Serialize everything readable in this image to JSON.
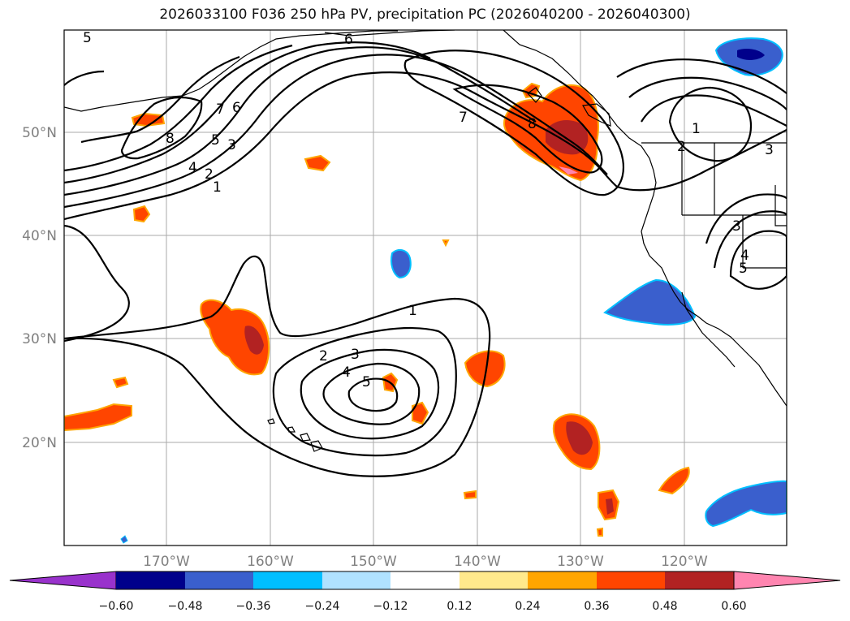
{
  "title": "2026033100 F036 250 hPa PV, precipitation PC (2026040200 - 2026040300)",
  "longitude_labels": [
    "170°W",
    "160°W",
    "150°W",
    "140°W",
    "130°W",
    "120°W"
  ],
  "latitude_labels": [
    "50°N",
    "40°N",
    "30°N",
    "20°N"
  ],
  "pv_contour_labels": [
    "5",
    "6",
    "8",
    "7",
    "6",
    "5",
    "3",
    "4",
    "2",
    "1",
    "7",
    "8",
    "1",
    "2",
    "3",
    "3",
    "4",
    "5",
    "1",
    "2",
    "3",
    "4",
    "5"
  ],
  "colorbar": {
    "tick_labels": [
      "−0.60",
      "−0.48",
      "−0.36",
      "−0.24",
      "−0.12",
      "0.12",
      "0.24",
      "0.36",
      "0.48",
      "0.60"
    ],
    "colors": [
      "#9932CC",
      "#00008B",
      "#3A5FCD",
      "#00BFFF",
      "#B0E2FF",
      "#FFFFFF",
      "#FFE98C",
      "#FFA500",
      "#FF4500",
      "#B22222",
      "#FF85B0"
    ]
  },
  "precip_colors": {
    "pos_light": "#FFE98C",
    "pos_orange": "#FFA500",
    "pos_red": "#FF4500",
    "pos_dark": "#B22222",
    "pos_pink": "#FF85B0",
    "neg_cyan": "#00BFFF",
    "neg_blue": "#3A5FCD",
    "neg_navy": "#00008B"
  }
}
